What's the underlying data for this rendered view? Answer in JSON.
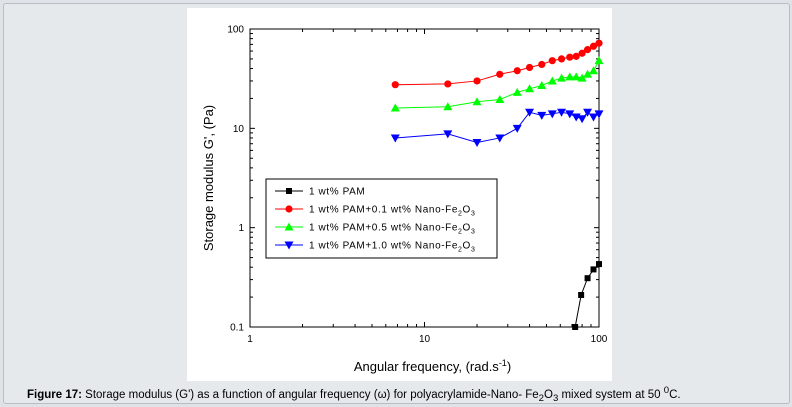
{
  "caption": {
    "label": "Figure 17:",
    "text_before": " Storage modulus (G') as a function of angular frequency (ω) for polyacrylamide-Nano- Fe",
    "sub1": "2",
    "mid1": "O",
    "sub2": "3",
    "text_after": " mixed system at 50 ",
    "sup": "0",
    "unit": "C."
  },
  "chart_data": {
    "type": "scatter",
    "title": "",
    "xlabel": "Angular frequency, (rad.s",
    "xlabel_sup": "-1",
    "xlabel_close": ")",
    "ylabel": "Storage modulus G', (Pa)",
    "xscale": "log",
    "yscale": "log",
    "xlim": [
      1,
      100
    ],
    "ylim": [
      0.1,
      100
    ],
    "x_ticks": [
      "1",
      "10",
      "100"
    ],
    "y_ticks": [
      "0.1",
      "1",
      "10",
      "100"
    ],
    "legend_position": "center-left",
    "series": [
      {
        "name": "1 wt% PAM",
        "label_main": "1 wt% PAM",
        "label_sub1": "",
        "label_mid": "",
        "label_sub2": "",
        "marker": "square",
        "color": "#000000",
        "x": [
          73,
          79,
          86,
          93,
          100
        ],
        "y": [
          0.1,
          0.21,
          0.31,
          0.38,
          0.43
        ]
      },
      {
        "name": "1 wt% PAM+0.1 wt% Nano-Fe2O3",
        "label_main": "1 wt% PAM+0.1 wt% Nano-Fe",
        "label_sub1": "2",
        "label_mid": "O",
        "label_sub2": "3",
        "marker": "circle",
        "color": "#ff0000",
        "x": [
          6.8,
          13.6,
          20,
          27,
          34,
          40,
          47,
          54,
          61,
          68,
          74,
          80,
          86,
          93,
          100
        ],
        "y": [
          27.5,
          28,
          30,
          35,
          38,
          41,
          44,
          48,
          50,
          52,
          53,
          57,
          62,
          67,
          72
        ]
      },
      {
        "name": "1 wt% PAM+0.5 wt% Nano-Fe2O3",
        "label_main": "1 wt% PAM+0.5 wt% Nano-Fe",
        "label_sub1": "2",
        "label_mid": "O",
        "label_sub2": "3",
        "marker": "triangle-up",
        "color": "#00ff00",
        "x": [
          6.8,
          13.6,
          20,
          27,
          34,
          40,
          47,
          54,
          61,
          68,
          74,
          80,
          86,
          93,
          100
        ],
        "y": [
          16,
          16.5,
          18.5,
          19.5,
          23,
          25,
          27,
          30,
          32,
          33,
          33,
          32,
          35,
          38,
          48
        ]
      },
      {
        "name": "1 wt% PAM+1.0 wt% Nano-Fe2O3",
        "label_main": "1 wt% PAM+1.0 wt% Nano-Fe",
        "label_sub1": "2",
        "label_mid": "O",
        "label_sub2": "3",
        "marker": "triangle-down",
        "color": "#0000ff",
        "x": [
          6.8,
          13.6,
          20,
          27,
          34,
          40,
          47,
          54,
          61,
          68,
          74,
          80,
          86,
          93,
          100
        ],
        "y": [
          8,
          8.8,
          7.2,
          8,
          10,
          14.5,
          13.5,
          14,
          14.5,
          14,
          13,
          12.5,
          14.5,
          13,
          14
        ]
      }
    ]
  }
}
